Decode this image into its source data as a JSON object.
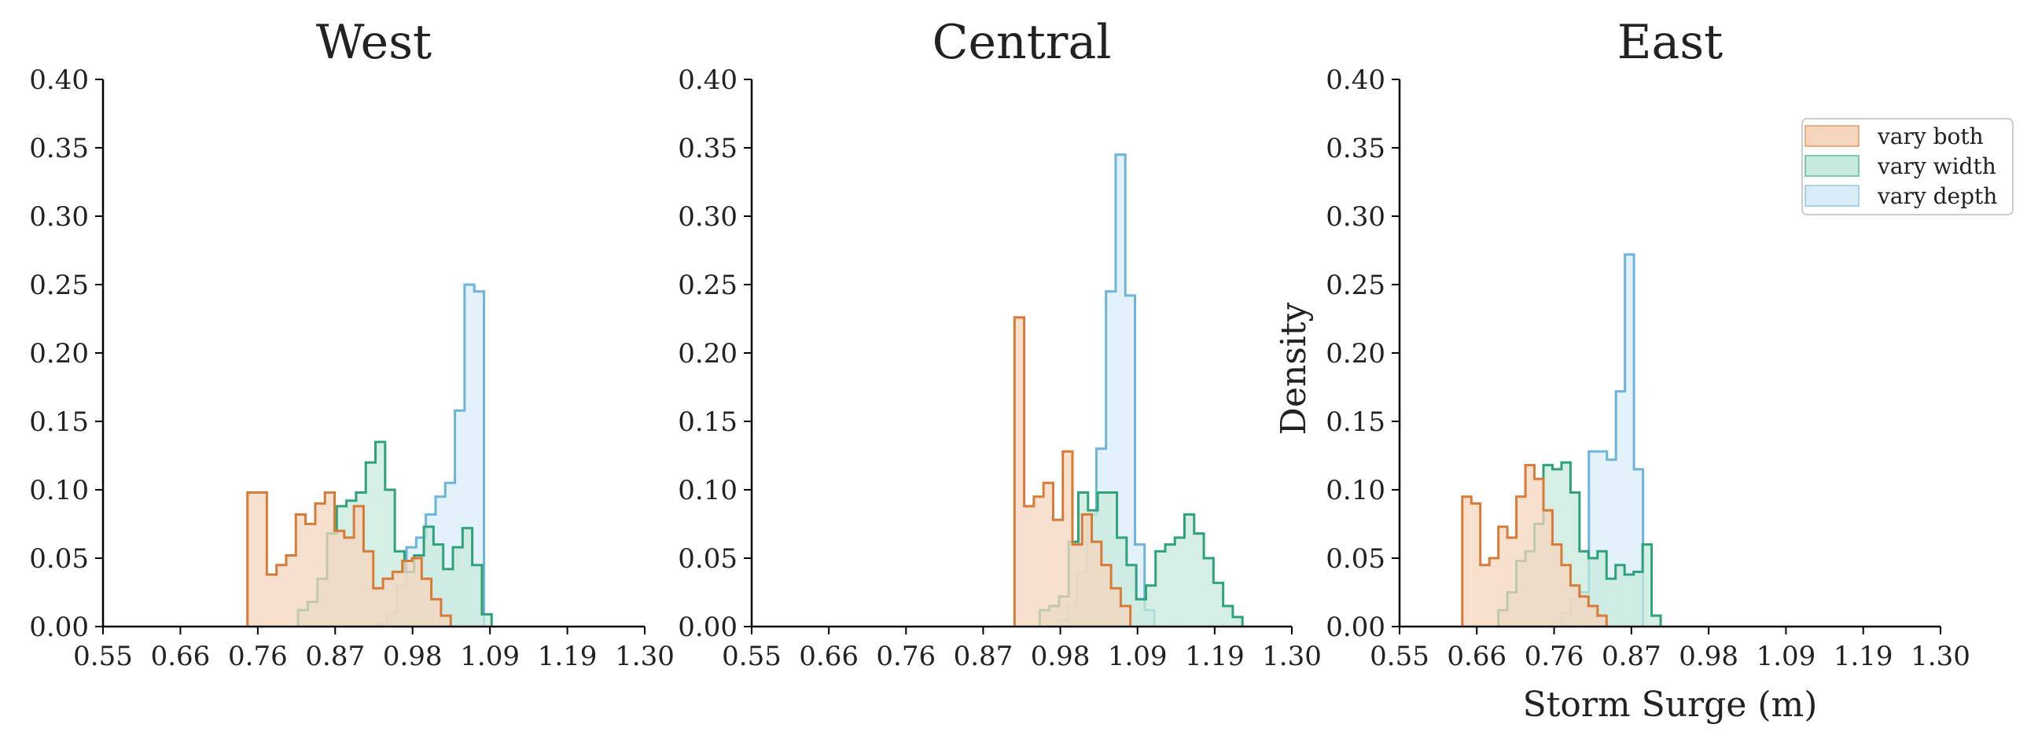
{
  "chart_data": [
    {
      "type": "histogram",
      "title": "West",
      "xlim": [
        0.55,
        1.3
      ],
      "ylim": [
        0,
        0.4
      ],
      "xticks": [
        "0.55",
        "0.66",
        "0.76",
        "0.87",
        "0.98",
        "1.09",
        "1.19",
        "1.30"
      ],
      "yticks": [
        "0.00",
        "0.05",
        "0.10",
        "0.15",
        "0.20",
        "0.25",
        "0.30",
        "0.35",
        "0.40"
      ],
      "xlabel": "",
      "ylabel": "",
      "series": [
        {
          "name": "vary both",
          "color": "#d97a36",
          "fill": "#f5d5bd",
          "bin_start": 0.75,
          "bin_width": 0.0134,
          "values": [
            0.098,
            0.098,
            0.038,
            0.045,
            0.052,
            0.082,
            0.075,
            0.09,
            0.098,
            0.07,
            0.065,
            0.088,
            0.055,
            0.028,
            0.035,
            0.04,
            0.048,
            0.05,
            0.035,
            0.02,
            0.008
          ]
        },
        {
          "name": "vary width",
          "color": "#2ea27a",
          "fill": "#c7eadc",
          "bin_start": 0.82,
          "bin_width": 0.0134,
          "values": [
            0.012,
            0.018,
            0.035,
            0.068,
            0.088,
            0.092,
            0.098,
            0.12,
            0.135,
            0.1,
            0.055,
            0.04,
            0.052,
            0.073,
            0.06,
            0.042,
            0.058,
            0.072,
            0.045,
            0.009
          ]
        },
        {
          "name": "vary depth",
          "color": "#6cb4dc",
          "fill": "#d9ecf8",
          "bin_start": 0.93,
          "bin_width": 0.0134,
          "values": [
            0.002,
            0.01,
            0.03,
            0.058,
            0.065,
            0.082,
            0.095,
            0.105,
            0.158,
            0.25,
            0.245
          ]
        }
      ]
    },
    {
      "type": "histogram",
      "title": "Central",
      "xlim": [
        0.55,
        1.3
      ],
      "ylim": [
        0,
        0.4
      ],
      "xticks": [
        "0.55",
        "0.66",
        "0.76",
        "0.87",
        "0.98",
        "1.09",
        "1.19",
        "1.30"
      ],
      "yticks": [
        "0.00",
        "0.05",
        "0.10",
        "0.15",
        "0.20",
        "0.25",
        "0.30",
        "0.35",
        "0.40"
      ],
      "xlabel": "",
      "ylabel": "",
      "series": [
        {
          "name": "vary both",
          "color": "#d97a36",
          "fill": "#f5d5bd",
          "bin_start": 0.915,
          "bin_width": 0.0134,
          "values": [
            0.226,
            0.088,
            0.095,
            0.105,
            0.078,
            0.128,
            0.06,
            0.082,
            0.062,
            0.045,
            0.028,
            0.015
          ]
        },
        {
          "name": "vary width",
          "color": "#2ea27a",
          "fill": "#c7eadc",
          "bin_start": 0.95,
          "bin_width": 0.0134,
          "values": [
            0.012,
            0.015,
            0.022,
            0.062,
            0.098,
            0.085,
            0.098,
            0.098,
            0.065,
            0.045,
            0.02,
            0.03,
            0.055,
            0.06,
            0.065,
            0.082,
            0.068,
            0.05,
            0.032,
            0.015,
            0.007
          ]
        },
        {
          "name": "vary depth",
          "color": "#6cb4dc",
          "fill": "#d9ecf8",
          "bin_start": 0.975,
          "bin_width": 0.0134,
          "values": [
            0.005,
            0.015,
            0.04,
            0.082,
            0.13,
            0.245,
            0.345,
            0.242,
            0.06,
            0.012
          ]
        }
      ]
    },
    {
      "type": "histogram",
      "title": "East",
      "xlim": [
        0.55,
        1.3
      ],
      "ylim": [
        0,
        0.4
      ],
      "xticks": [
        "0.55",
        "0.66",
        "0.76",
        "0.87",
        "0.98",
        "1.09",
        "1.19",
        "1.30"
      ],
      "yticks": [
        "0.00",
        "0.05",
        "0.10",
        "0.15",
        "0.20",
        "0.25",
        "0.30",
        "0.35",
        "0.40"
      ],
      "xlabel": "Storm Surge (m)",
      "ylabel": "Density",
      "series": [
        {
          "name": "vary both",
          "color": "#d97a36",
          "fill": "#f5d5bd",
          "bin_start": 0.637,
          "bin_width": 0.0125,
          "values": [
            0.095,
            0.09,
            0.045,
            0.05,
            0.073,
            0.065,
            0.095,
            0.118,
            0.108,
            0.085,
            0.06,
            0.045,
            0.03,
            0.022,
            0.015,
            0.008
          ]
        },
        {
          "name": "vary width",
          "color": "#2ea27a",
          "fill": "#c7eadc",
          "bin_start": 0.687,
          "bin_width": 0.0125,
          "values": [
            0.012,
            0.025,
            0.048,
            0.055,
            0.075,
            0.118,
            0.115,
            0.12,
            0.098,
            0.055,
            0.05,
            0.055,
            0.035,
            0.045,
            0.038,
            0.04,
            0.06,
            0.008
          ]
        },
        {
          "name": "vary depth",
          "color": "#6cb4dc",
          "fill": "#d9ecf8",
          "bin_start": 0.775,
          "bin_width": 0.0125,
          "values": [
            0.01,
            0.02,
            0.025,
            0.128,
            0.128,
            0.122,
            0.172,
            0.272,
            0.115
          ]
        }
      ]
    }
  ],
  "legend": {
    "position": "upper-right",
    "items": [
      {
        "label": "vary both",
        "series_index": 0
      },
      {
        "label": "vary width",
        "series_index": 1
      },
      {
        "label": "vary depth",
        "series_index": 2
      }
    ]
  }
}
